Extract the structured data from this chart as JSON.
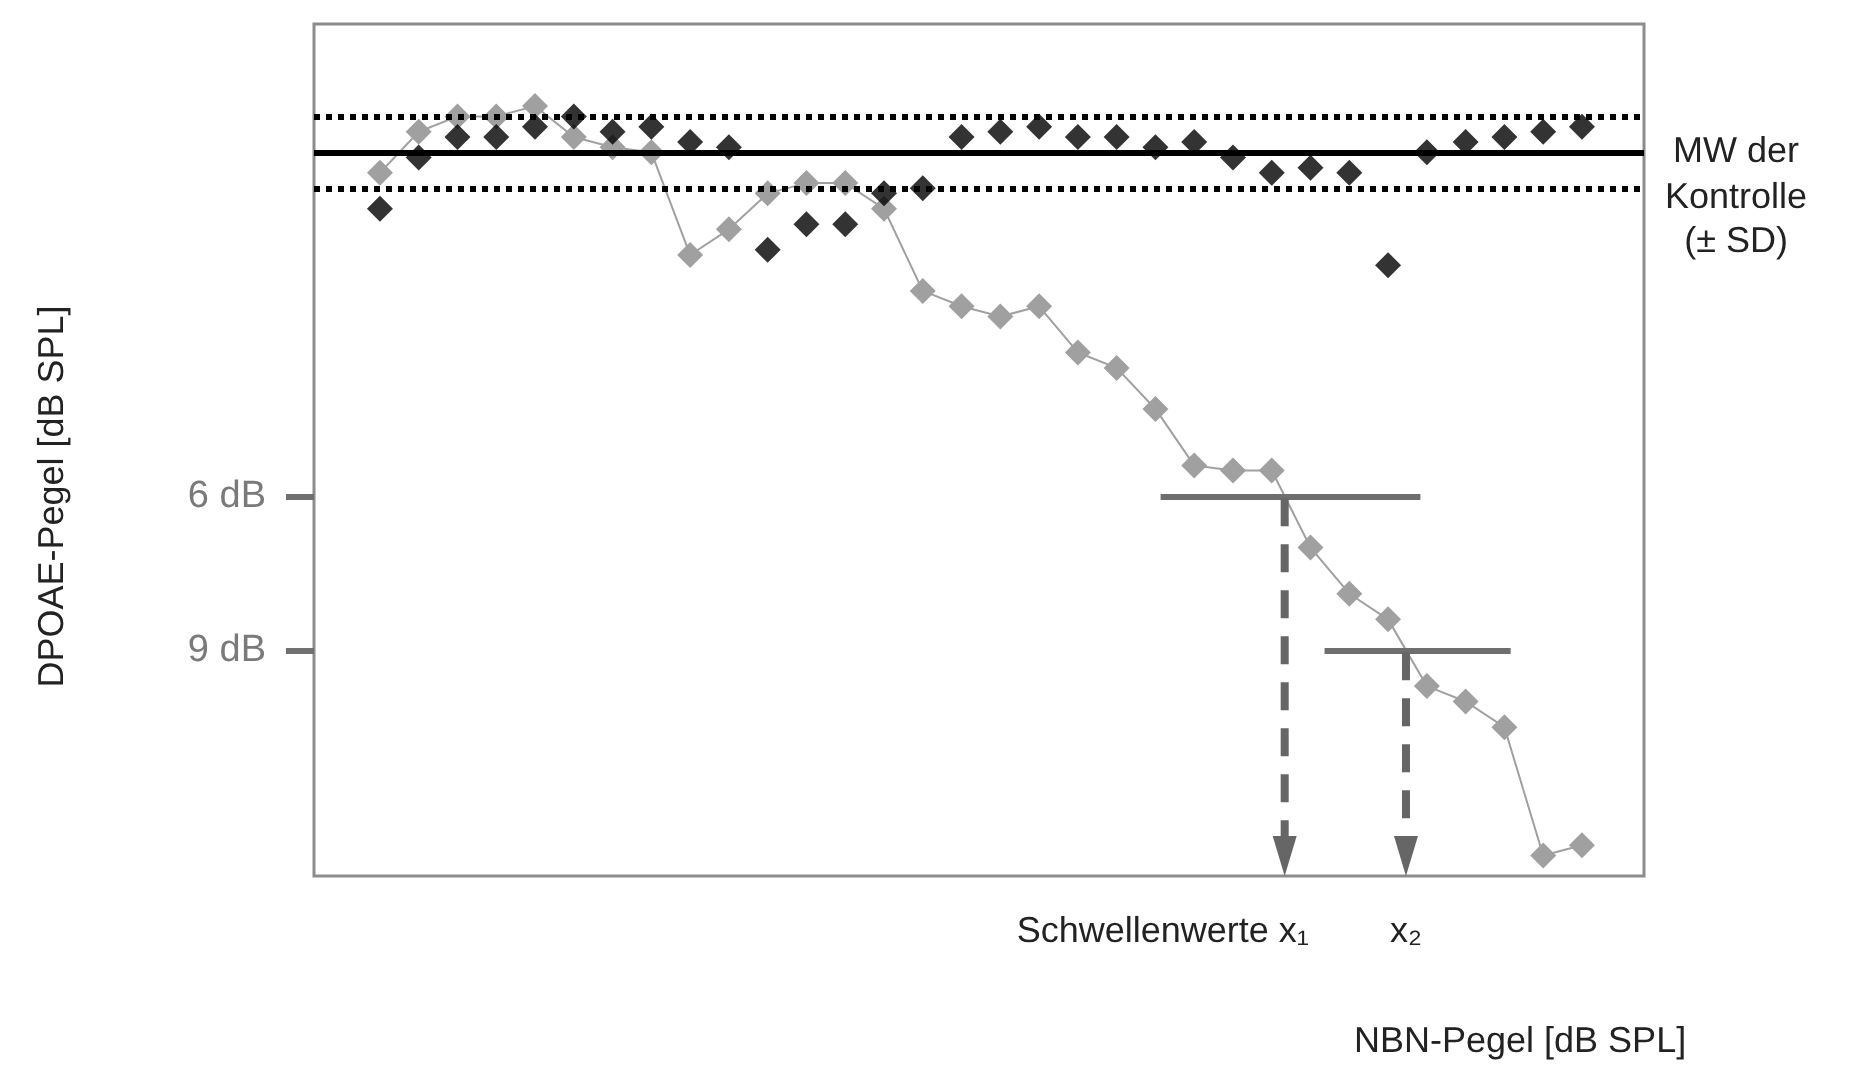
{
  "chart_data": {
    "type": "line",
    "xlabel": "NBN-Pegel [dB SPL]",
    "ylabel": "DPOAE-Pegel [dB SPL]",
    "categories": [
      null,
      null,
      null,
      null,
      null,
      null,
      null,
      null,
      null,
      null,
      null,
      null,
      null,
      null,
      null,
      null,
      null,
      null,
      null,
      null,
      null,
      null,
      null,
      null,
      null,
      null,
      null,
      null,
      null,
      null,
      null,
      null
    ],
    "ylim": [
      13.4,
      -3.2
    ],
    "yticks": [
      {
        "value": 6,
        "label": "6 dB"
      },
      {
        "value": 9,
        "label": "9 dB"
      }
    ],
    "marker": "diamond",
    "series": [
      {
        "color": "#a0a0a0",
        "values": [
          -0.3,
          -1.1,
          -1.4,
          -1.4,
          -1.6,
          -1.0,
          -0.8,
          -0.7,
          1.3,
          0.8,
          0.1,
          -0.1,
          -0.1,
          0.4,
          2.0,
          2.3,
          2.5,
          2.3,
          3.2,
          3.5,
          4.3,
          5.4,
          5.5,
          5.5,
          7.0,
          7.9,
          8.4,
          9.7,
          10.0,
          10.5,
          13.0,
          12.8
        ]
      },
      {
        "type": "scatter",
        "color": "#000000",
        "values": [
          0.4,
          -0.6,
          -1.0,
          -1.0,
          -1.2,
          -1.4,
          -1.1,
          -1.2,
          -0.9,
          -0.8,
          1.2,
          0.7,
          0.7,
          0.1,
          0.0,
          -1.0,
          -1.1,
          -1.2,
          -1.0,
          -1.0,
          -0.8,
          -0.9,
          -0.6,
          -0.3,
          -0.4,
          -0.3,
          1.5,
          -0.7,
          -0.9,
          -1.0,
          -1.1,
          -1.2
        ]
      }
    ],
    "ref_lines": [
      {
        "axis": "y",
        "value": -0.7,
        "label": "MW der Kontrolle (± SD)",
        "color": "#000000",
        "line_style": "solid"
      },
      {
        "axis": "y",
        "value": -1.4,
        "color": "#000000",
        "line_style": "dotted"
      },
      {
        "axis": "y",
        "value": 0.0,
        "color": "#000000",
        "line_style": "dotted"
      },
      {
        "axis": "y",
        "value": 6,
        "color": "#6e6e6e",
        "line_style": "solid"
      },
      {
        "axis": "y",
        "value": 9,
        "color": "#6e6e6e",
        "line_style": "solid"
      }
    ],
    "annotations": [
      "Schwellenwerte x₁",
      "x₂"
    ]
  }
}
